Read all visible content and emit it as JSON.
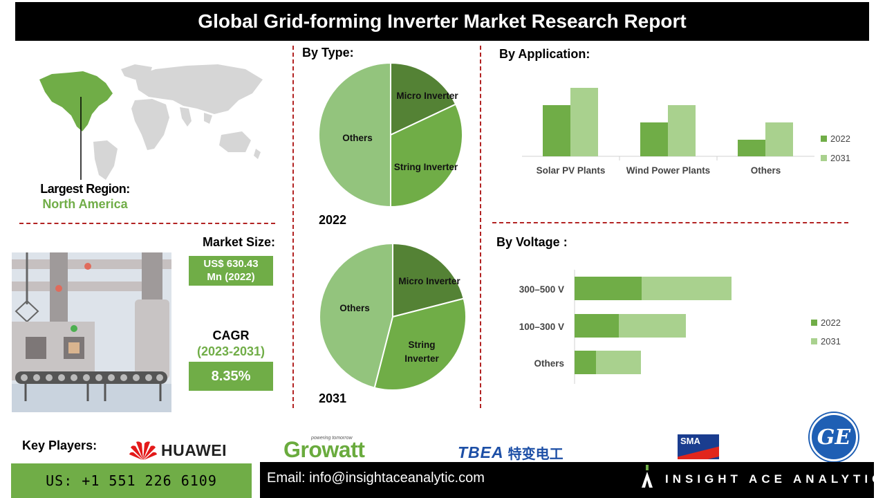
{
  "title": "Global Grid-forming Inverter Market Research Report",
  "region": {
    "label": "Largest Region:",
    "value": "North America"
  },
  "market_size": {
    "label": "Market Size:",
    "value_line1": "US$ 630.43",
    "value_line2": "Mn (2022)"
  },
  "cagr": {
    "label": "CAGR",
    "period": "(2023-2031)",
    "value": "8.35%"
  },
  "by_type": {
    "title": "By Type:",
    "year_a": "2022",
    "year_b": "2031"
  },
  "by_application": {
    "title": "By Application:"
  },
  "by_voltage": {
    "title": "By Voltage :"
  },
  "key_players": {
    "label": "Key Players:",
    "huawei": "HUAWEI",
    "growatt": "Growatt",
    "growatt_tagline": "powering tomorrow",
    "tbea": "TBEA",
    "tbea_cn": "特变电工",
    "sma": "SMA",
    "ge": "GE"
  },
  "footer": {
    "phone": "US: +1 551 226 6109",
    "email": "Email: info@insightaceanalytic.com",
    "brand": "INSIGHT ACE ANALYTIC"
  },
  "colors": {
    "dark_green": "#548235",
    "mid_green": "#70ad47",
    "light_green": "#a9d18e",
    "pie_light": "#93c47d",
    "red_dash": "#b22222",
    "ge_blue": "#1f5fb4"
  },
  "chart_data": [
    {
      "type": "pie",
      "year": "2022",
      "labels": [
        "Micro Inverter",
        "String Inverter",
        "Others"
      ],
      "values": [
        18,
        32,
        50
      ]
    },
    {
      "type": "pie",
      "year": "2031",
      "labels": [
        "Micro Inverter",
        "String Inverter",
        "Others"
      ],
      "values": [
        21,
        33,
        46
      ]
    },
    {
      "type": "bar",
      "title": "By Application:",
      "categories": [
        "Solar PV Plants",
        "Wind Power Plants",
        "Others"
      ],
      "series": [
        {
          "name": "2022",
          "values": [
            74,
            49,
            24
          ]
        },
        {
          "name": "2031",
          "values": [
            99,
            74,
            49
          ]
        }
      ]
    },
    {
      "type": "bar",
      "title": "By Voltage :",
      "orientation": "horizontal",
      "stacked": true,
      "categories": [
        "300–500 V",
        "100–300 V",
        "Others"
      ],
      "series": [
        {
          "name": "2022",
          "values": [
            97,
            64,
            31
          ]
        },
        {
          "name": "2031",
          "values": [
            130,
            97,
            65
          ]
        }
      ]
    }
  ]
}
